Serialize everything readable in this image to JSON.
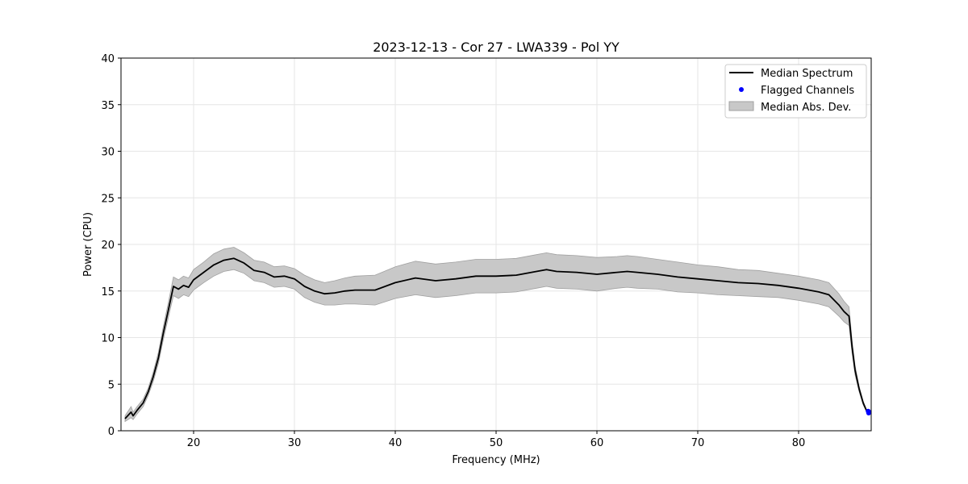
{
  "chart_data": {
    "type": "line",
    "title": "2023-12-13 - Cor 27 - LWA339 - Pol YY",
    "xlabel": "Frequency (MHz)",
    "ylabel": "Power (CPU)",
    "xlim": [
      12.8,
      87.2
    ],
    "ylim": [
      0,
      40
    ],
    "xticks": [
      20,
      30,
      40,
      50,
      60,
      70,
      80
    ],
    "yticks": [
      0,
      5,
      10,
      15,
      20,
      25,
      30,
      35,
      40
    ],
    "grid": true,
    "legend_position": "upper right",
    "legend": [
      {
        "label": "Median Spectrum",
        "kind": "line"
      },
      {
        "label": "Flagged Channels",
        "kind": "point"
      },
      {
        "label": "Median Abs. Dev.",
        "kind": "band"
      }
    ],
    "colors": {
      "median": "#000000",
      "flagged": "#0000ff",
      "band_fill": "#c8c8c8",
      "band_edge": "#a0a0a0",
      "grid": "#e6e6e6"
    },
    "series": [
      {
        "name": "Median Spectrum",
        "x": [
          13.2,
          13.8,
          14.0,
          14.4,
          15.0,
          15.5,
          16.0,
          16.5,
          17.0,
          17.5,
          18.0,
          18.5,
          19.0,
          19.5,
          20.0,
          21.0,
          22.0,
          23.0,
          24.0,
          25.0,
          26.0,
          27.0,
          28.0,
          29.0,
          30.0,
          31.0,
          32.0,
          33.0,
          34.0,
          35.0,
          36.0,
          38.0,
          40.0,
          42.0,
          44.0,
          46.0,
          48.0,
          50.0,
          52.0,
          54.0,
          55.0,
          56.0,
          58.0,
          60.0,
          62.0,
          63.0,
          64.0,
          66.0,
          68.0,
          70.0,
          72.0,
          74.0,
          76.0,
          78.0,
          80.0,
          82.0,
          83.0,
          84.0,
          84.5,
          85.0,
          85.3,
          85.6,
          86.0,
          86.4,
          86.8
        ],
        "y": [
          1.3,
          2.0,
          1.6,
          2.2,
          3.0,
          4.2,
          5.8,
          7.8,
          10.5,
          13.0,
          15.5,
          15.2,
          15.6,
          15.4,
          16.2,
          17.0,
          17.8,
          18.3,
          18.5,
          18.0,
          17.2,
          17.0,
          16.5,
          16.6,
          16.3,
          15.5,
          15.0,
          14.7,
          14.8,
          15.0,
          15.1,
          15.1,
          15.9,
          16.4,
          16.1,
          16.3,
          16.6,
          16.6,
          16.7,
          17.1,
          17.3,
          17.1,
          17.0,
          16.8,
          17.0,
          17.1,
          17.0,
          16.8,
          16.5,
          16.3,
          16.1,
          15.9,
          15.8,
          15.6,
          15.3,
          14.9,
          14.6,
          13.5,
          12.8,
          12.3,
          9.0,
          6.5,
          4.5,
          3.0,
          2.0
        ],
        "mad": [
          0.3,
          0.6,
          0.4,
          0.4,
          0.4,
          0.4,
          0.5,
          0.6,
          0.7,
          0.8,
          1.0,
          1.0,
          1.0,
          1.0,
          1.1,
          1.1,
          1.2,
          1.2,
          1.2,
          1.1,
          1.1,
          1.1,
          1.1,
          1.1,
          1.1,
          1.2,
          1.2,
          1.2,
          1.3,
          1.4,
          1.5,
          1.6,
          1.7,
          1.8,
          1.8,
          1.8,
          1.8,
          1.8,
          1.8,
          1.8,
          1.8,
          1.8,
          1.8,
          1.8,
          1.7,
          1.7,
          1.7,
          1.6,
          1.6,
          1.5,
          1.5,
          1.4,
          1.4,
          1.3,
          1.3,
          1.3,
          1.3,
          1.2,
          1.1,
          1.0,
          0.7,
          0.5,
          0.3,
          0.2,
          0.1
        ]
      }
    ],
    "flagged_channels": {
      "name": "Flagged Channels",
      "x": [
        86.9,
        86.95,
        87.0
      ],
      "y": [
        2.1,
        1.9,
        2.0
      ]
    }
  }
}
